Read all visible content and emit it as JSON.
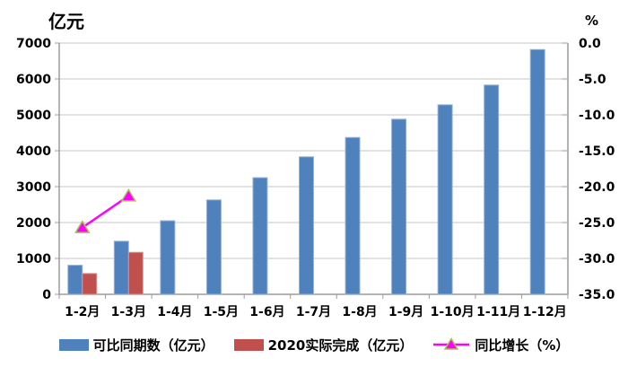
{
  "chart_data": {
    "type": "bar",
    "title": "",
    "categories": [
      "1-2月",
      "1-3月",
      "1-4月",
      "1-5月",
      "1-6月",
      "1-7月",
      "1-8月",
      "1-9月",
      "1-10月",
      "1-11月",
      "1-12月"
    ],
    "series": [
      {
        "name": "可比同期数（亿元）",
        "type": "bar",
        "axis": "left",
        "color": "#4F81BD",
        "border_color": "#95B3D7",
        "values": [
          810,
          1480,
          2050,
          2630,
          3250,
          3830,
          4370,
          4880,
          5280,
          5830,
          6820
        ]
      },
      {
        "name": "2020实际完成（亿元）",
        "type": "bar",
        "axis": "left",
        "color": "#C0504D",
        "border_color": "#D99694",
        "values": [
          580,
          1170,
          null,
          null,
          null,
          null,
          null,
          null,
          null,
          null,
          null
        ]
      },
      {
        "name": "同比增长（%）",
        "type": "line",
        "axis": "right",
        "color": "#FF00FF",
        "marker": "triangle",
        "marker_border": "#A9C24F",
        "values": [
          -25.7,
          -21.3,
          null,
          null,
          null,
          null,
          null,
          null,
          null,
          null,
          null
        ]
      }
    ],
    "left_axis": {
      "title": "亿元",
      "min": 0,
      "max": 7000,
      "step": 1000,
      "tick_labels": [
        "7000",
        "6000",
        "5000",
        "4000",
        "3000",
        "2000",
        "1000",
        "0"
      ]
    },
    "right_axis": {
      "title": "%",
      "min": -35,
      "max": 0,
      "step": 5,
      "tick_labels": [
        "0.0",
        "-5.0",
        "-10.0",
        "-15.0",
        "-20.0",
        "-25.0",
        "-30.0",
        "-35.0"
      ]
    },
    "grid": true,
    "legend_position": "bottom",
    "colors": {
      "gridline": "#C6C6C6",
      "axis_line": "#9C9C9C",
      "text": "#000000"
    }
  }
}
